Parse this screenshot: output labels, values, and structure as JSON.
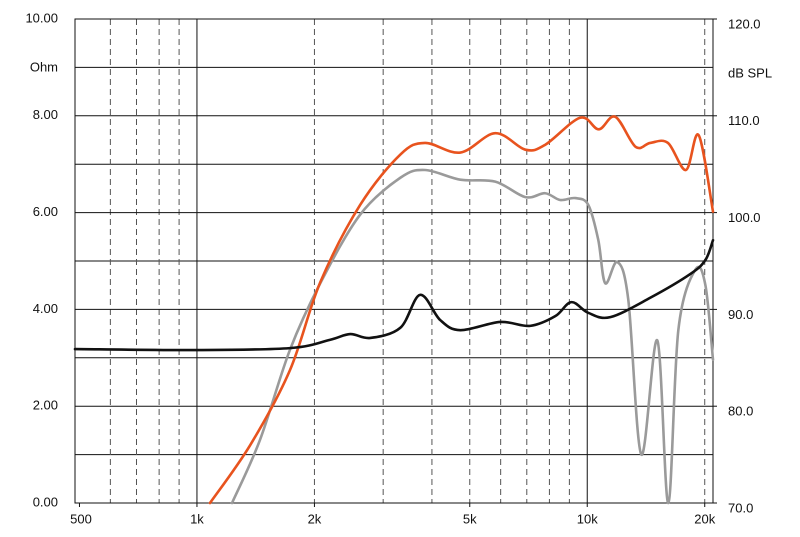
{
  "chart_data": {
    "type": "line",
    "x_scale": "log",
    "xlim": [
      487,
      21000
    ],
    "xticks": [
      {
        "value": 500,
        "label": "500"
      },
      {
        "value": 1000,
        "label": "1k"
      },
      {
        "value": 2000,
        "label": "2k"
      },
      {
        "value": 5000,
        "label": "5k"
      },
      {
        "value": 10000,
        "label": "10k"
      },
      {
        "value": 20000,
        "label": "20k"
      }
    ],
    "x_major_grid": [
      1000,
      10000
    ],
    "x_minor_grid": [
      600,
      700,
      800,
      900,
      2000,
      3000,
      4000,
      5000,
      6000,
      7000,
      8000,
      9000,
      20000
    ],
    "ylim": [
      0,
      10
    ],
    "yticks": [
      {
        "value": 0,
        "label": "0.00"
      },
      {
        "value": 2,
        "label": "2.00"
      },
      {
        "value": 4,
        "label": "4.00"
      },
      {
        "value": 6,
        "label": "6.00"
      },
      {
        "value": 8,
        "label": "8.00"
      },
      {
        "value": 10,
        "label": "10.00"
      }
    ],
    "y_minor_grid": [
      1,
      3,
      5,
      7,
      9
    ],
    "y_label": "Ohm",
    "y2lim": [
      70,
      120
    ],
    "y2ticks": [
      {
        "value": 70,
        "label": "70.0"
      },
      {
        "value": 80,
        "label": "80.0"
      },
      {
        "value": 90,
        "label": "90.0"
      },
      {
        "value": 100,
        "label": "100.0"
      },
      {
        "value": 110,
        "label": "110.0"
      },
      {
        "value": 120,
        "label": "120.0"
      }
    ],
    "y2_label": "dB SPL",
    "grid": true,
    "series": [
      {
        "color": "#e8531e",
        "axis": "y2",
        "x": [
          1080,
          1370,
          1730,
          2070,
          2620,
          3320,
          3840,
          4730,
          5810,
          6940,
          7800,
          9590,
          10700,
          11800,
          13300,
          14500,
          16100,
          17900,
          19300,
          21000
        ],
        "values": [
          70,
          76,
          83.7,
          92.8,
          100.8,
          106,
          107.2,
          106.2,
          108.2,
          106.5,
          107,
          109.8,
          108.6,
          109.9,
          106.8,
          107.2,
          107.2,
          104.4,
          108,
          100.1
        ]
      },
      {
        "color": "#9a9a9a",
        "axis": "y2",
        "x": [
          1230,
          1450,
          1730,
          2070,
          2620,
          3320,
          3840,
          4730,
          5810,
          6940,
          7800,
          8520,
          9320,
          10060,
          10670,
          11120,
          11940,
          12740,
          13760,
          15120,
          16130,
          17120,
          18920,
          20080,
          21000
        ],
        "values": [
          70,
          76.5,
          85.8,
          92.7,
          99.8,
          103.6,
          104.4,
          103.4,
          103.2,
          101.6,
          102,
          101.3,
          101.5,
          100.8,
          97.2,
          92.7,
          94.9,
          91,
          75,
          86.8,
          70,
          87.9,
          94.1,
          92.5,
          84.8
        ]
      },
      {
        "color": "#111111",
        "x": [
          487,
          1000,
          1730,
          2190,
          2470,
          2780,
          3320,
          3730,
          4200,
          4730,
          5980,
          7140,
          8280,
          9100,
          10060,
          11460,
          14500,
          18360,
          20080,
          21000
        ],
        "values": [
          3.18,
          3.16,
          3.2,
          3.37,
          3.49,
          3.41,
          3.62,
          4.3,
          3.78,
          3.57,
          3.74,
          3.66,
          3.86,
          4.15,
          3.93,
          3.84,
          4.24,
          4.73,
          5.02,
          5.43
        ]
      }
    ]
  }
}
